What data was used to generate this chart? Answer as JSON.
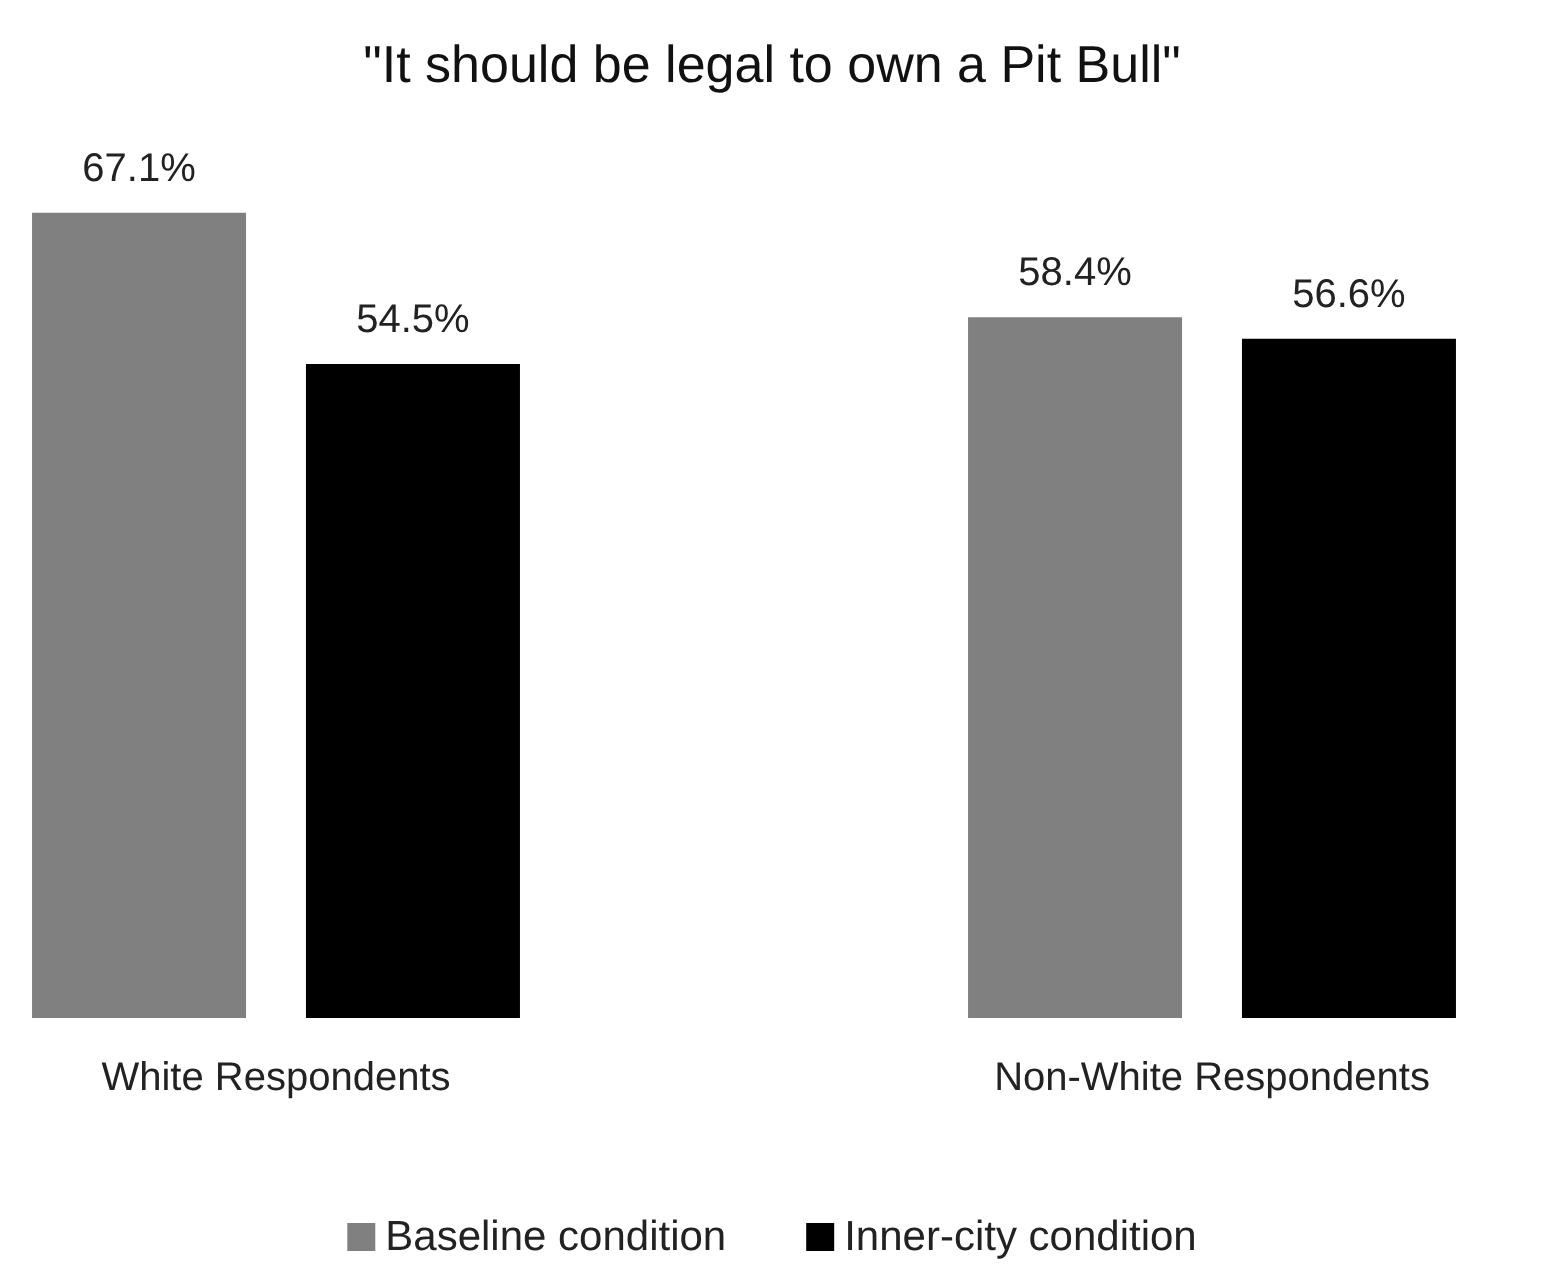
{
  "chart_data": {
    "type": "bar",
    "title": "\"It should be legal to own a Pit Bull\"",
    "categories": [
      "White Respondents",
      "Non-White Respondents"
    ],
    "series": [
      {
        "name": "Baseline condition",
        "color": "#808080",
        "values": [
          67.1,
          58.4
        ],
        "value_labels": [
          "67.1%",
          "58.4%"
        ]
      },
      {
        "name": "Inner-city condition",
        "color": "#000000",
        "values": [
          54.5,
          56.6
        ],
        "value_labels": [
          "54.5%",
          "56.6%"
        ]
      }
    ],
    "legend": "bottom"
  }
}
